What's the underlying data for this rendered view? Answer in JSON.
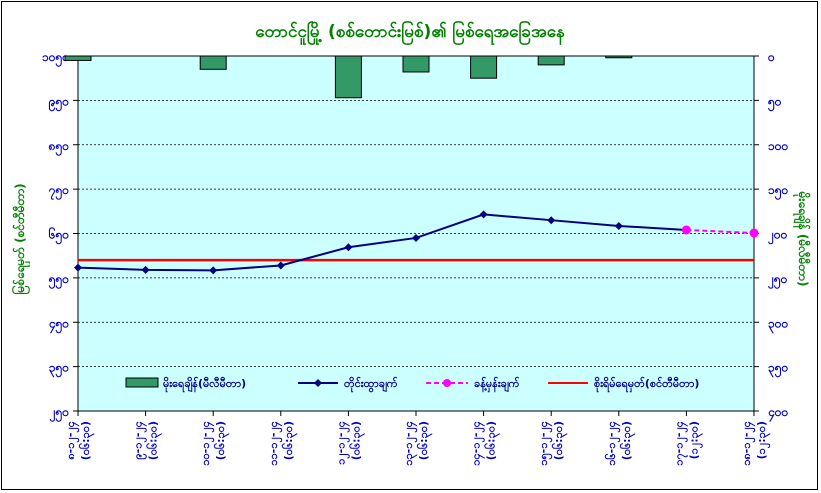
{
  "chart_data": {
    "type": "bar+line",
    "title": "တောင်ငူမြို့ (စစ်တောင်းမြစ်)၏ မြစ်ရေအခြေအနေ",
    "ylabel_left": "မြစ်ရေမှတ် (စင်တီမီတာ)",
    "ylabel_right": "မိုးရေချိန် (မီလီမီတာ)",
    "yticks_left": [
      "၁၀၅၀",
      "၉၅၀",
      "၈၅၀",
      "၇၅၀",
      "၆၅၀",
      "၅၅၀",
      "၄၅၀",
      "၃၅၀",
      "၂၅၀"
    ],
    "yticks_right": [
      "၀",
      "၅၀",
      "၁၀၀",
      "၁၅၀",
      "၂၀၀",
      "၂၅၀",
      "၃၀၀",
      "၃၅၀",
      "၄၀၀"
    ],
    "ylim_left": [
      250,
      1050
    ],
    "ylim_right": [
      0,
      400
    ],
    "x_labels_top": [
      "၈-၁၂-၂၄",
      "၉-၁၂-၂၄",
      "၁၀-၁၂-၂၄",
      "၁၁-၁၂-၂၄",
      "၁၂-၁၂-၂၄",
      "၁၃-၁၂-၂၄",
      "၁၄-၁၂-၂၄",
      "၁၅-၁၂-၂၄",
      "၁၆-၁၂-၂၄",
      "၁၇-၁၂-၂၄",
      "၁၈-၁၂-၂၄"
    ],
    "x_labels_bottom": [
      "(၀၆:၃၀)",
      "(၀၆:၃၀)",
      "(၀၆:၃၀)",
      "(၀၆:၃၀)",
      "(၀၆:၃၀)",
      "(၀၆:၃၀)",
      "(၀၆:၃၀)",
      "(၀၆:၃၀)",
      "(၀၆:၃၀)",
      "(၁၂:၃၀)",
      "(၁၂:၃၀)"
    ],
    "rainfall": [
      5,
      0,
      15,
      0,
      47,
      18,
      25,
      10,
      2,
      0,
      0
    ],
    "observed_water_level": [
      573,
      568,
      567,
      578,
      619,
      640,
      693,
      680,
      667,
      658,
      null
    ],
    "forecast_water_level": [
      null,
      null,
      null,
      null,
      null,
      null,
      null,
      null,
      null,
      658,
      651
    ],
    "danger_level": 590,
    "legend": {
      "rainfall": "မိုးရေချိန်(မီလီမီတာ)",
      "observed": "တိုင်းထွာချက်",
      "forecast": "ခန့်မှန်းချက်",
      "danger": "စိုးရိမ်ရေမှတ်(စင်တီမီတာ)"
    },
    "colors": {
      "plot_bg": "#ccffff",
      "bar": "#339966",
      "observed": "#000080",
      "forecast": "#ff00ff",
      "danger": "#ff0000"
    }
  }
}
